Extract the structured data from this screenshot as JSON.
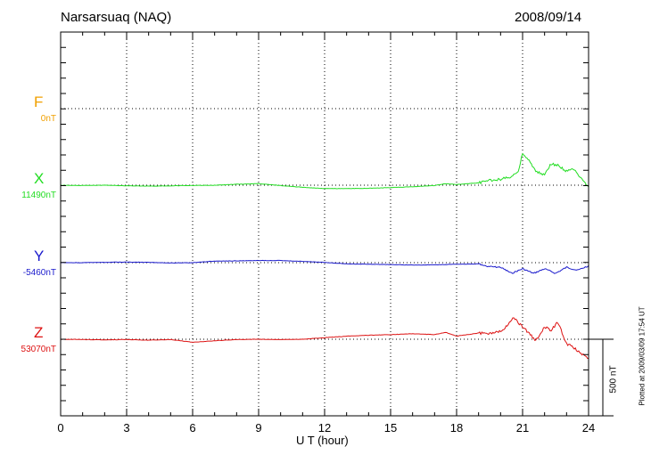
{
  "station_title": "Narsarsuaq (NAQ)",
  "date": "2008/09/14",
  "plotted_note": "Plotted at 2009/03/09 17:54 UT",
  "scale_bar_label": "500 nT",
  "chart_data": {
    "type": "line",
    "title": "Narsarsuaq (NAQ)",
    "xlabel": "U T (hour)",
    "xlim": [
      0,
      24
    ],
    "xticks": [
      0,
      3,
      6,
      9,
      12,
      15,
      18,
      21,
      24
    ],
    "x_tick_labels": [
      "0",
      "3",
      "6",
      "9",
      "12",
      "15",
      "18",
      "21",
      "24"
    ],
    "grid": true,
    "scale_bar_nT": 500,
    "series": [
      {
        "name": "F",
        "baseline_label": "0nT",
        "color": "#f0a000",
        "hours": [],
        "values": []
      },
      {
        "name": "X",
        "baseline_label": "11490nT",
        "color": "#22dd22",
        "hours": [
          0,
          1,
          2,
          3,
          4,
          5,
          6,
          7,
          8,
          9,
          10,
          11,
          12,
          13,
          14,
          15,
          16,
          17,
          17.5,
          18,
          18.5,
          19,
          19.5,
          20,
          20.4,
          20.8,
          21,
          21.3,
          21.6,
          22,
          22.3,
          22.6,
          23,
          23.3,
          23.6,
          24
        ],
        "values": [
          11490,
          11488,
          11490,
          11486,
          11484,
          11486,
          11488,
          11490,
          11496,
          11500,
          11488,
          11476,
          11468,
          11468,
          11470,
          11474,
          11480,
          11488,
          11500,
          11494,
          11500,
          11505,
          11520,
          11530,
          11540,
          11580,
          11700,
          11650,
          11580,
          11560,
          11630,
          11620,
          11580,
          11600,
          11540,
          11480
        ]
      },
      {
        "name": "Y",
        "baseline_label": "-5460nT",
        "color": "#1a1acc",
        "hours": [
          0,
          1,
          2,
          3,
          4,
          5,
          6,
          7,
          8,
          9,
          10,
          11,
          12,
          13,
          14,
          15,
          16,
          17,
          18,
          19,
          19.5,
          20,
          20.5,
          21,
          21.5,
          22,
          22.5,
          23,
          23.5,
          24
        ],
        "values": [
          -5460,
          -5460,
          -5458,
          -5456,
          -5458,
          -5462,
          -5460,
          -5450,
          -5448,
          -5446,
          -5446,
          -5452,
          -5458,
          -5468,
          -5470,
          -5472,
          -5476,
          -5474,
          -5470,
          -5468,
          -5486,
          -5490,
          -5530,
          -5500,
          -5530,
          -5500,
          -5530,
          -5490,
          -5510,
          -5480
        ]
      },
      {
        "name": "Z",
        "baseline_label": "53070nT",
        "color": "#dd1111",
        "hours": [
          0,
          1,
          2,
          3,
          4,
          5,
          6,
          7,
          8,
          9,
          10,
          11,
          12,
          13,
          14,
          15,
          16,
          17,
          17.5,
          18,
          18.5,
          19,
          19.5,
          20,
          20.3,
          20.6,
          21,
          21.3,
          21.6,
          22,
          22.3,
          22.6,
          23,
          23.3,
          23.6,
          24
        ],
        "values": [
          53070,
          53068,
          53066,
          53068,
          53064,
          53068,
          53050,
          53060,
          53068,
          53070,
          53068,
          53070,
          53080,
          53090,
          53096,
          53100,
          53106,
          53100,
          53115,
          53090,
          53100,
          53110,
          53104,
          53120,
          53160,
          53210,
          53150,
          53110,
          53060,
          53150,
          53130,
          53180,
          53040,
          53020,
          52980,
          52940
        ]
      }
    ]
  }
}
